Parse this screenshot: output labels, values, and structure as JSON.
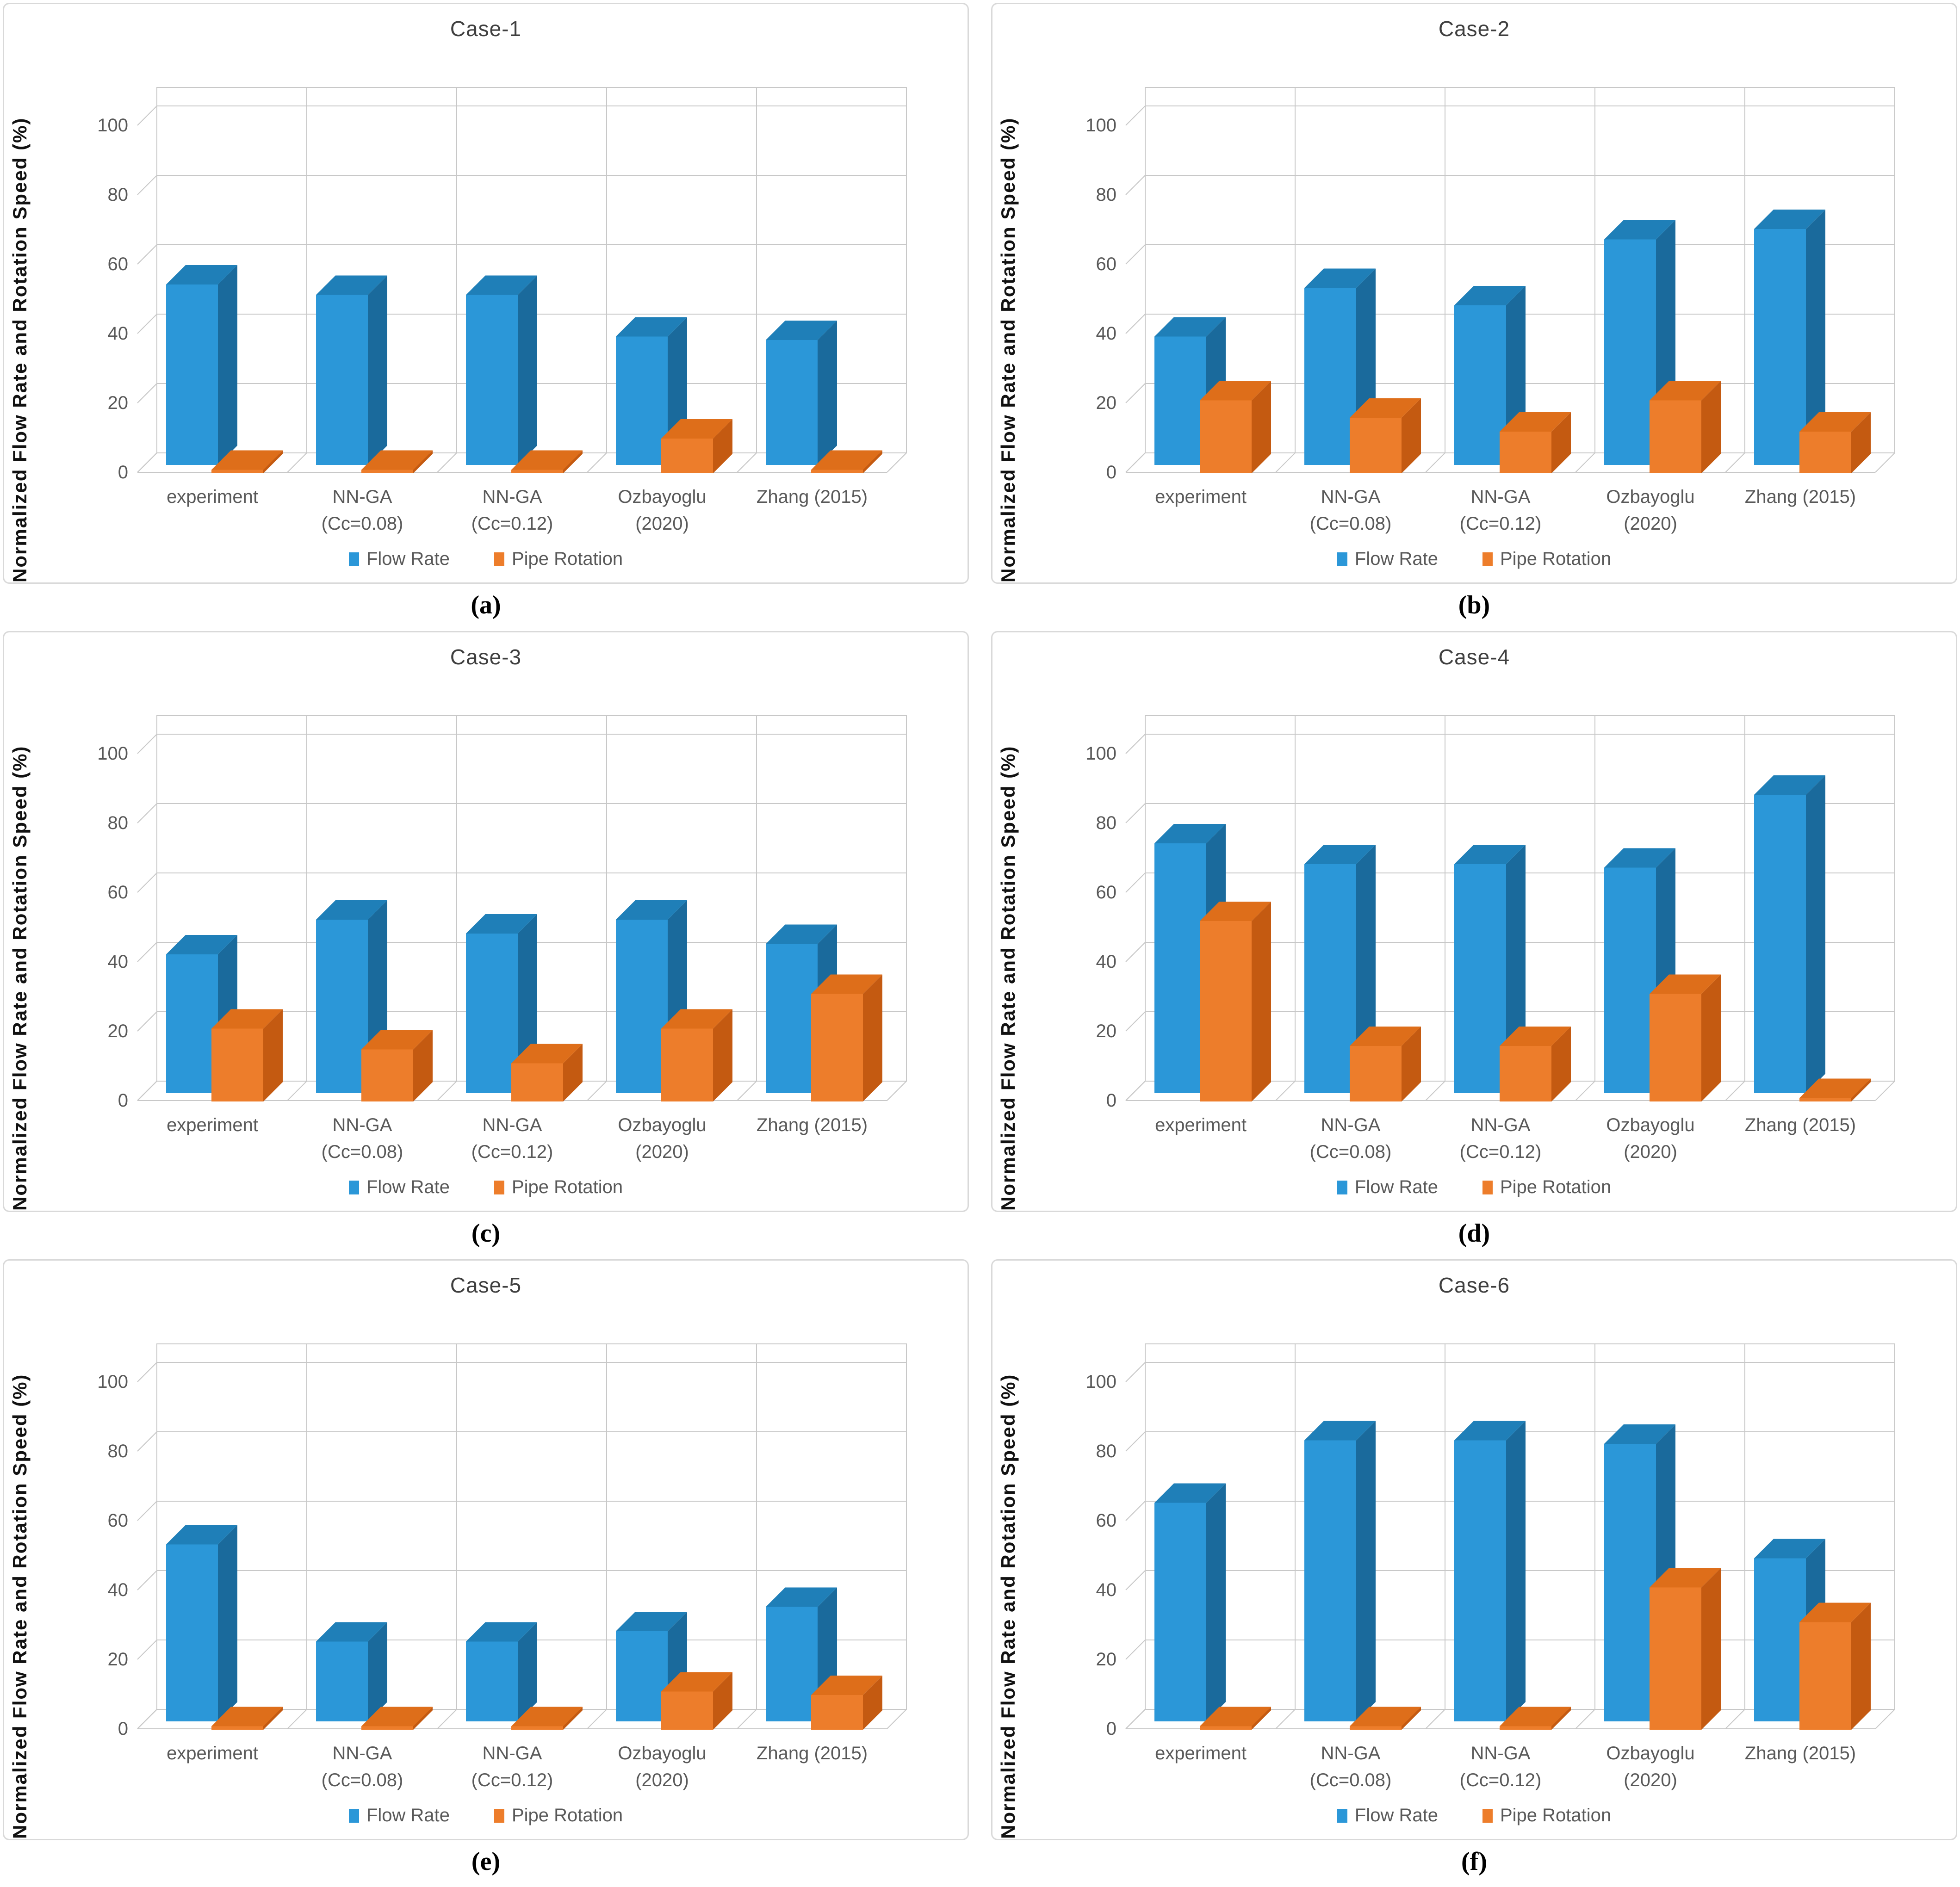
{
  "figure": {
    "captions": [
      "(a)",
      "(b)",
      "(c)",
      "(d)",
      "(e)",
      "(f)"
    ]
  },
  "shared": {
    "ylabel": "Normalized Flow Rate and Rotation Speed (%)",
    "yticks": [
      0,
      20,
      40,
      60,
      80,
      100
    ],
    "category_lines": [
      [
        "experiment"
      ],
      [
        "NN-GA",
        "(Cc=0.08)"
      ],
      [
        "NN-GA",
        "(Cc=0.12)"
      ],
      [
        "Ozbayoglu",
        "(2020)"
      ],
      [
        "Zhang (2015)"
      ]
    ],
    "legend": [
      "Flow Rate",
      "Pipe Rotation"
    ]
  },
  "colors": {
    "flow_rate_front": "#2B97D8",
    "flow_rate_top": "#1F7FB8",
    "flow_rate_side": "#1A6A9C",
    "pipe_rotation_front": "#ED7D2B",
    "pipe_rotation_top": "#DE6E1A",
    "pipe_rotation_side": "#C45A11",
    "gridline": "#c8c8c8",
    "axis_text": "#595959",
    "title_text": "#3f3f3f",
    "panel_border": "#d9d9d9"
  },
  "chart_data": [
    {
      "type": "bar",
      "title": "Case-1",
      "caption": "(a)",
      "categories": [
        "experiment",
        "NN-GA (Cc=0.08)",
        "NN-GA (Cc=0.12)",
        "Ozbayoglu (2020)",
        "Zhang (2015)"
      ],
      "series": [
        {
          "name": "Flow Rate",
          "values": [
            52,
            49,
            49,
            37,
            36
          ]
        },
        {
          "name": "Pipe Rotation",
          "values": [
            1,
            1,
            1,
            10,
            1
          ]
        }
      ],
      "xlabel": "",
      "ylabel": "Normalized Flow Rate and Rotation Speed (%)",
      "ylim": [
        0,
        100
      ],
      "grid": true,
      "legend_position": "bottom",
      "style": "3d-clustered-bar"
    },
    {
      "type": "bar",
      "title": "Case-2",
      "caption": "(b)",
      "categories": [
        "experiment",
        "NN-GA (Cc=0.08)",
        "NN-GA (Cc=0.12)",
        "Ozbayoglu (2020)",
        "Zhang (2015)"
      ],
      "series": [
        {
          "name": "Flow Rate",
          "values": [
            37,
            51,
            46,
            65,
            68
          ]
        },
        {
          "name": "Pipe Rotation",
          "values": [
            21,
            16,
            12,
            21,
            12
          ]
        }
      ],
      "xlabel": "",
      "ylabel": "Normalized Flow Rate and Rotation Speed (%)",
      "ylim": [
        0,
        100
      ],
      "grid": true,
      "legend_position": "bottom",
      "style": "3d-clustered-bar"
    },
    {
      "type": "bar",
      "title": "Case-3",
      "caption": "(c)",
      "categories": [
        "experiment",
        "NN-GA (Cc=0.08)",
        "NN-GA (Cc=0.12)",
        "Ozbayoglu (2020)",
        "Zhang (2015)"
      ],
      "series": [
        {
          "name": "Flow Rate",
          "values": [
            40,
            50,
            46,
            50,
            43
          ]
        },
        {
          "name": "Pipe Rotation",
          "values": [
            21,
            15,
            11,
            21,
            31
          ]
        }
      ],
      "xlabel": "",
      "ylabel": "Normalized Flow Rate and Rotation Speed (%)",
      "ylim": [
        0,
        100
      ],
      "grid": true,
      "legend_position": "bottom",
      "style": "3d-clustered-bar"
    },
    {
      "type": "bar",
      "title": "Case-4",
      "caption": "(d)",
      "categories": [
        "experiment",
        "NN-GA (Cc=0.08)",
        "NN-GA (Cc=0.12)",
        "Ozbayoglu (2020)",
        "Zhang (2015)"
      ],
      "series": [
        {
          "name": "Flow Rate",
          "values": [
            72,
            66,
            66,
            65,
            86
          ]
        },
        {
          "name": "Pipe Rotation",
          "values": [
            52,
            16,
            16,
            31,
            1
          ]
        }
      ],
      "xlabel": "",
      "ylabel": "Normalized Flow Rate and Rotation Speed (%)",
      "ylim": [
        0,
        100
      ],
      "grid": true,
      "legend_position": "bottom",
      "style": "3d-clustered-bar"
    },
    {
      "type": "bar",
      "title": "Case-5",
      "caption": "(e)",
      "categories": [
        "experiment",
        "NN-GA (Cc=0.08)",
        "NN-GA (Cc=0.12)",
        "Ozbayoglu (2020)",
        "Zhang (2015)"
      ],
      "series": [
        {
          "name": "Flow Rate",
          "values": [
            51,
            23,
            23,
            26,
            33
          ]
        },
        {
          "name": "Pipe Rotation",
          "values": [
            1,
            1,
            1,
            11,
            10
          ]
        }
      ],
      "xlabel": "",
      "ylabel": "Normalized Flow Rate and Rotation Speed (%)",
      "ylim": [
        0,
        100
      ],
      "grid": true,
      "legend_position": "bottom",
      "style": "3d-clustered-bar"
    },
    {
      "type": "bar",
      "title": "Case-6",
      "caption": "(f)",
      "categories": [
        "experiment",
        "NN-GA (Cc=0.08)",
        "NN-GA (Cc=0.12)",
        "Ozbayoglu (2020)",
        "Zhang (2015)"
      ],
      "series": [
        {
          "name": "Flow Rate",
          "values": [
            63,
            81,
            81,
            80,
            47
          ]
        },
        {
          "name": "Pipe Rotation",
          "values": [
            1,
            1,
            1,
            41,
            31
          ]
        }
      ],
      "xlabel": "",
      "ylabel": "Normalized Flow Rate and Rotation Speed (%)",
      "ylim": [
        0,
        100
      ],
      "grid": true,
      "legend_position": "bottom",
      "style": "3d-clustered-bar"
    }
  ]
}
